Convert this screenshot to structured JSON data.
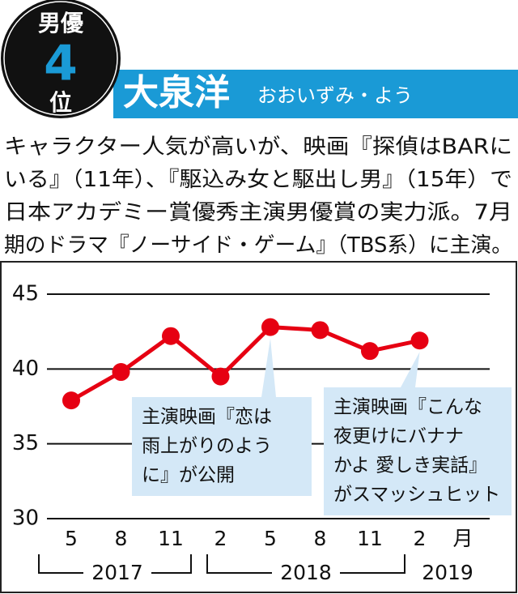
{
  "header": {
    "rank_top": "男優",
    "rank_number": "4",
    "rank_bottom": "位",
    "name": "大泉洋",
    "reading": "おおいずみ・よう"
  },
  "description": [
    "キャラクター人気が高いが、映画『探偵はBARに",
    "いる』（11年）、『駆込み女と駆出し男』（15年）で",
    "日本アカデミー賞優秀主演男優賞の実力派。7月",
    "期のドラマ『ノーサイド・ゲーム』（TBS系）に主演。"
  ],
  "chart_data": {
    "type": "line",
    "categories": [
      "5",
      "8",
      "11",
      "2",
      "5",
      "8",
      "11",
      "2"
    ],
    "x_unit": "月",
    "years": [
      "2017",
      "2018",
      "2019"
    ],
    "series": [
      {
        "color": "#e60012",
        "values": [
          37.9,
          39.8,
          42.2,
          39.5,
          42.8,
          42.6,
          41.2,
          41.9
        ]
      }
    ],
    "ylim": [
      30,
      45
    ],
    "yticks": [
      30,
      35,
      40,
      45
    ],
    "grid": true,
    "annotations": [
      {
        "lines": [
          "主演映画『恋は",
          "雨上がりのよう",
          "に』が公開"
        ]
      },
      {
        "lines": [
          "主演映画『こんな",
          "夜更けにバナナ",
          "かよ 愛しき実話』",
          "がスマッシュヒット"
        ]
      }
    ]
  }
}
